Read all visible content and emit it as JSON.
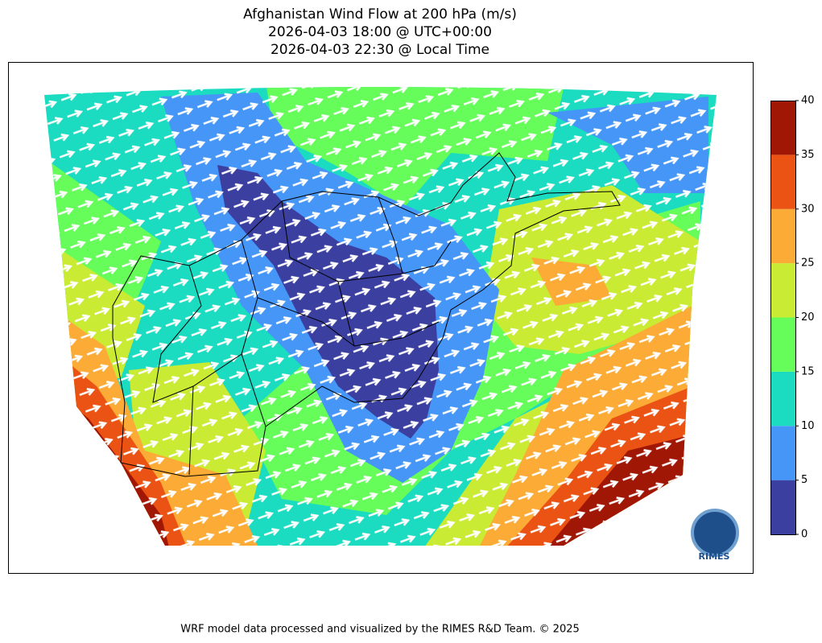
{
  "title": [
    "Afghanistan Wind Flow at 200 hPa (m/s)",
    "2026-04-03 18:00 @ UTC+00:00",
    "2026-04-03 22:30 @ Local Time"
  ],
  "colorbar": {
    "ticks": [
      0,
      5,
      10,
      15,
      20,
      25,
      30,
      35,
      40
    ],
    "colors": [
      "#3b3fa0",
      "#4696f8",
      "#1bdbc0",
      "#66fc5a",
      "#c9eb33",
      "#fbab36",
      "#ea5313",
      "#a01705"
    ]
  },
  "logo": "RIMES",
  "footer": "WRF model data processed and visualized by the RIMES R&D Team. © 2025"
}
